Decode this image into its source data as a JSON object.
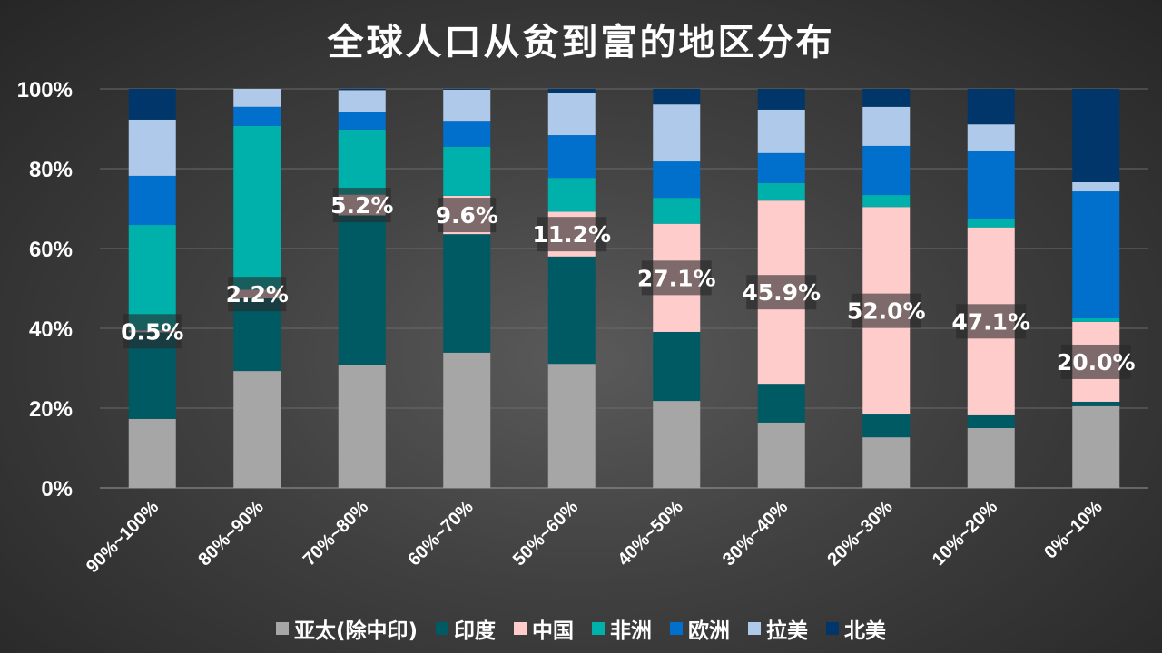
{
  "chart_data": {
    "type": "bar",
    "stacked": true,
    "title": "全球人口从贫到富的地区分布",
    "xlabel": "",
    "ylabel": "",
    "ylim": [
      0,
      100
    ],
    "yticks": [
      "0%",
      "20%",
      "40%",
      "60%",
      "80%",
      "100%"
    ],
    "grid": true,
    "legend_position": "bottom",
    "categories": [
      "90%~100%",
      "80%~90%",
      "70%~80%",
      "60%~70%",
      "50%~60%",
      "40%~50%",
      "30%~40%",
      "20%~30%",
      "10%~20%",
      "0%~10%"
    ],
    "series": [
      {
        "name": "亚太(除中印)",
        "color": "#a6a6a6",
        "values": [
          17.3,
          29.3,
          30.7,
          33.9,
          31.1,
          21.8,
          16.4,
          12.7,
          15.0,
          20.5
        ]
      },
      {
        "name": "印度",
        "color": "#005a64",
        "values": [
          21.7,
          18.2,
          37.6,
          29.7,
          26.9,
          17.3,
          9.7,
          5.7,
          3.2,
          1.1
        ]
      },
      {
        "name": "中国",
        "color": "#ffcccc",
        "values": [
          0.5,
          2.2,
          5.2,
          9.6,
          11.2,
          27.1,
          45.9,
          52.0,
          47.1,
          20.0
        ],
        "data_labels": [
          "0.5%",
          "2.2%",
          "5.2%",
          "9.6%",
          "11.2%",
          "27.1%",
          "45.9%",
          "52.0%",
          "47.1%",
          "20.0%"
        ]
      },
      {
        "name": "非洲",
        "color": "#00b0aa",
        "values": [
          26.4,
          41.0,
          16.3,
          12.3,
          8.5,
          6.5,
          4.4,
          3.0,
          2.2,
          0.9
        ]
      },
      {
        "name": "欧洲",
        "color": "#0070cc",
        "values": [
          12.3,
          4.8,
          4.3,
          6.5,
          10.7,
          9.1,
          7.5,
          12.3,
          17.0,
          31.8
        ]
      },
      {
        "name": "拉美",
        "color": "#afc9ea",
        "values": [
          14.1,
          4.5,
          5.6,
          7.8,
          10.5,
          14.3,
          10.9,
          9.8,
          6.6,
          2.3
        ]
      },
      {
        "name": "北美",
        "color": "#00366a",
        "values": [
          7.7,
          0.0,
          0.3,
          0.2,
          1.1,
          3.9,
          5.2,
          4.5,
          8.9,
          23.4
        ]
      }
    ]
  }
}
